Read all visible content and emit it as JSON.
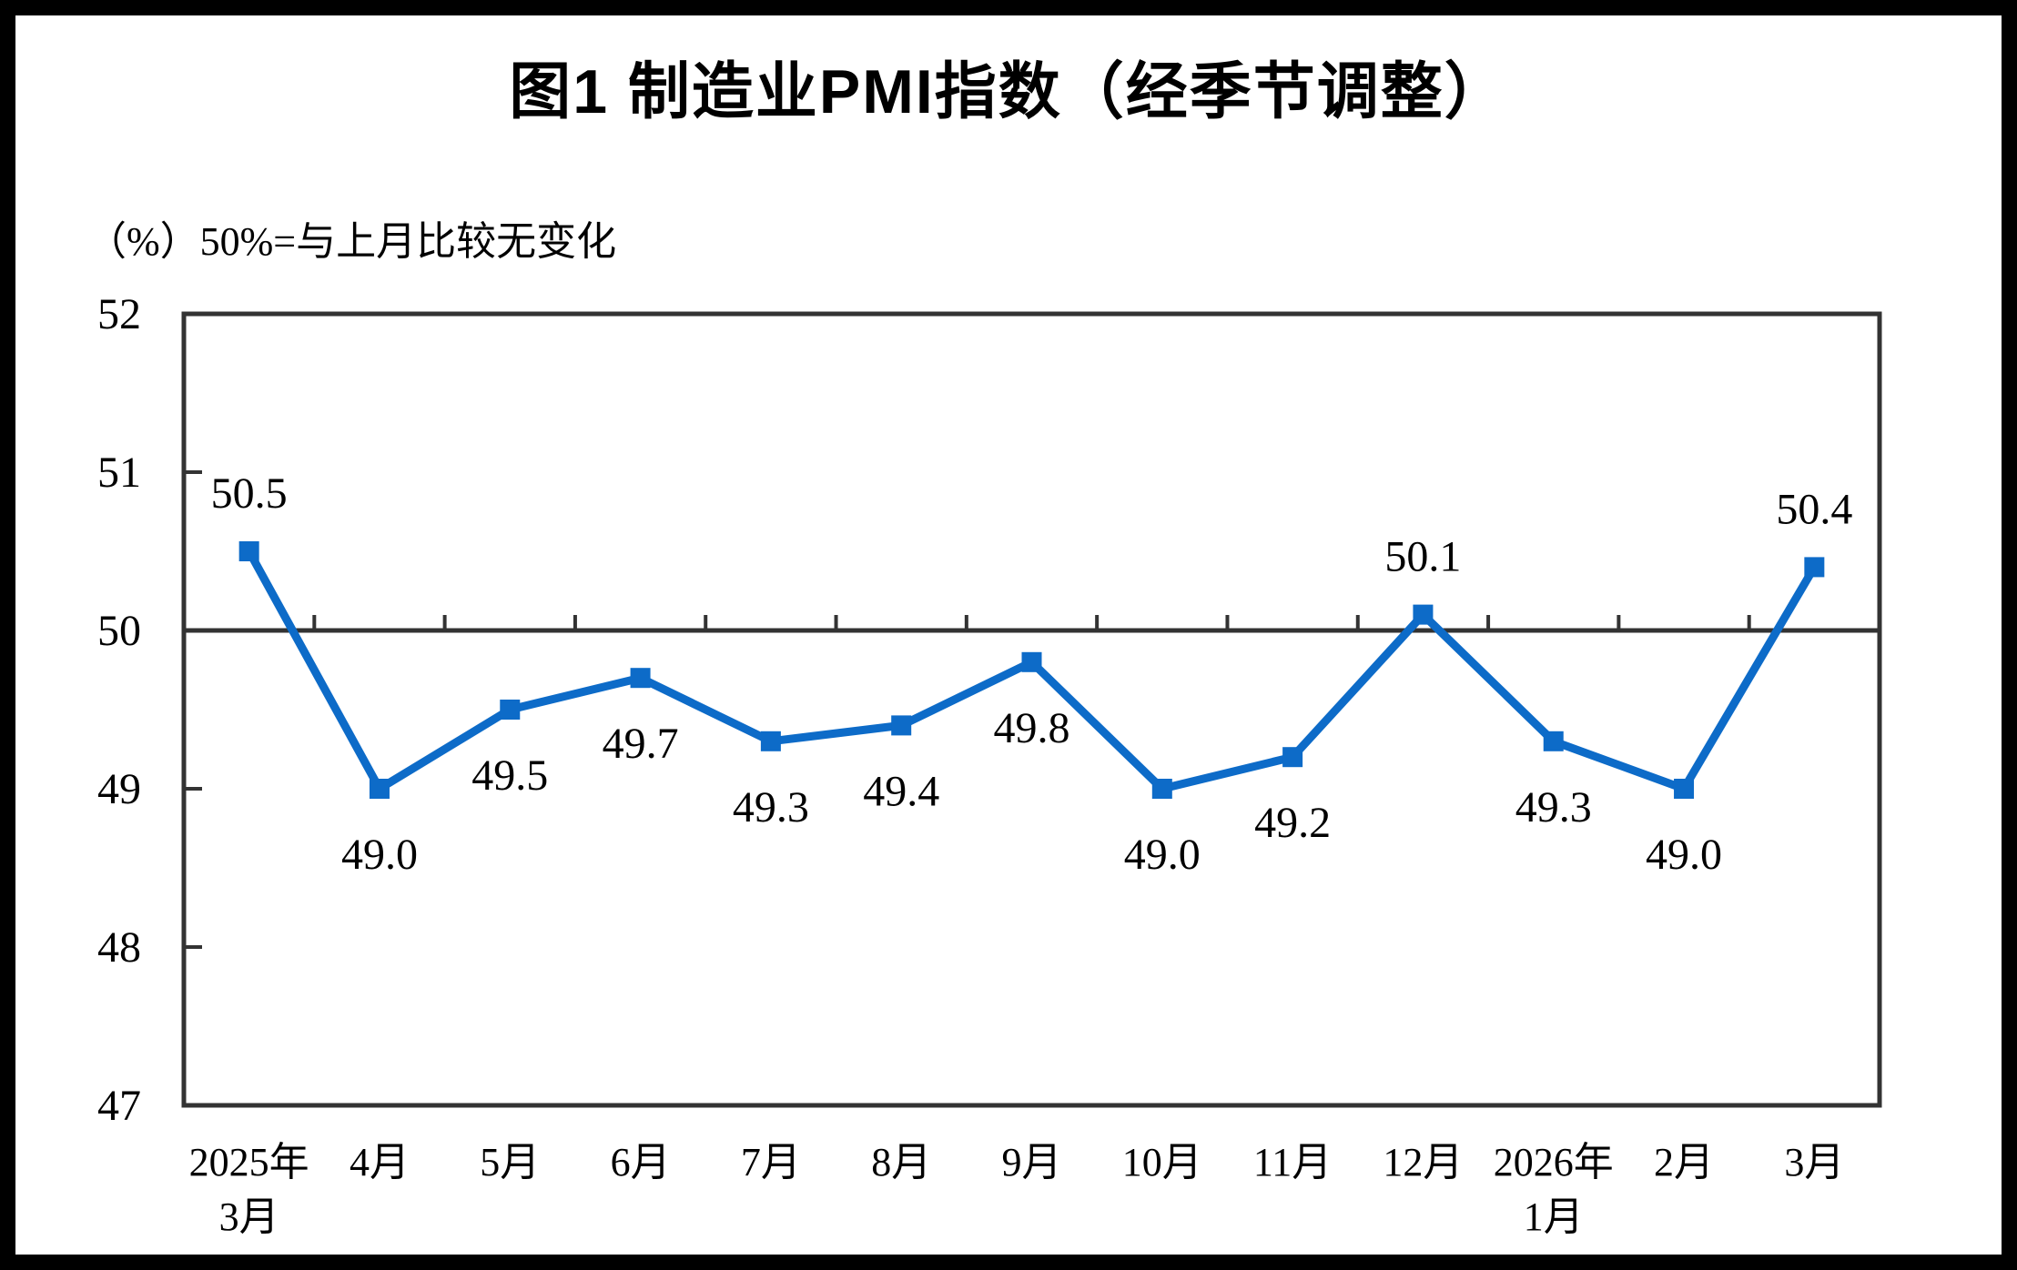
{
  "header": {
    "figure_label": "图1",
    "title": "图1 制造业PMI指数（经季节调整）",
    "subtitle": "（%）50%=与上月比较无变化"
  },
  "colors": {
    "series_blue": "#0D6BC8",
    "axis_dark": "#333333",
    "text_black": "#000000",
    "background": "#ffffff",
    "page_frame": "#000000"
  },
  "chart_data": {
    "type": "line",
    "title": "图1 制造业PMI指数（经季节调整）",
    "subtitle": "（%）50%=与上月比较无变化",
    "unit": "%",
    "reference_note": "50%=与上月比较无变化",
    "categories": [
      [
        "2025年",
        "3月"
      ],
      [
        "4月"
      ],
      [
        "5月"
      ],
      [
        "6月"
      ],
      [
        "7月"
      ],
      [
        "8月"
      ],
      [
        "9月"
      ],
      [
        "10月"
      ],
      [
        "11月"
      ],
      [
        "12月"
      ],
      [
        "2026年",
        "1月"
      ],
      [
        "2月"
      ],
      [
        "3月"
      ]
    ],
    "series": [
      {
        "name": "制造业PMI",
        "values": [
          50.5,
          49.0,
          49.5,
          49.7,
          49.3,
          49.4,
          49.8,
          49.0,
          49.2,
          50.1,
          49.3,
          49.0,
          50.4
        ],
        "labels": [
          "50.5",
          "49.0",
          "49.5",
          "49.7",
          "49.3",
          "49.4",
          "49.8",
          "49.0",
          "49.2",
          "50.1",
          "49.3",
          "49.0",
          "50.4"
        ],
        "label_position": [
          "above",
          "below",
          "below",
          "below",
          "below",
          "below",
          "below",
          "below",
          "below",
          "above",
          "below",
          "below",
          "above"
        ],
        "marker": "square",
        "color": "#0D6BC8"
      }
    ],
    "ylim": [
      47,
      52
    ],
    "yticks": [
      47,
      48,
      49,
      50,
      51,
      52
    ],
    "reference_line": 50,
    "grid": false,
    "legend_position": "none",
    "axis_color": "#333333"
  }
}
